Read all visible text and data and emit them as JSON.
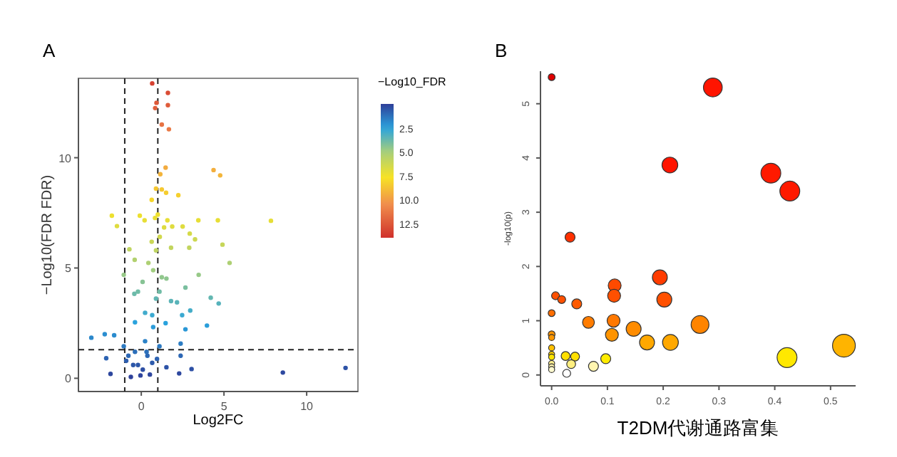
{
  "chart_data": [
    {
      "type": "scatter",
      "title": "A",
      "xlabel": "Log2FC",
      "ylabel": "−Log10(FDR FDR)",
      "clabel": "−Log10_FDR",
      "xlim": [
        -3.8,
        13.1
      ],
      "ylim": [
        -0.6,
        13.6
      ],
      "xticks": [
        0,
        5,
        10
      ],
      "yticks": [
        0,
        5,
        10
      ],
      "clim": [
        0,
        14
      ],
      "cticks": [
        {
          "value": 2.5,
          "label": "2.5"
        },
        {
          "value": 5,
          "label": "5.0"
        },
        {
          "value": 7.5,
          "label": "7.5"
        },
        {
          "value": 10,
          "label": "10.0"
        },
        {
          "value": 12.5,
          "label": "12.5"
        }
      ],
      "grid": false,
      "ref_lines": [
        {
          "axis": "x",
          "value": -1,
          "line_style": "dashed"
        },
        {
          "axis": "x",
          "value": 1,
          "line_style": "dashed"
        },
        {
          "axis": "y",
          "value": 1.3,
          "line_style": "dashed"
        }
      ],
      "x": [
        0.66,
        1.61,
        1.61,
        0.92,
        0.84,
        1.24,
        1.67,
        1.47,
        4.37,
        4.77,
        1.15,
        0.89,
        1.24,
        1.5,
        2.24,
        0.63,
        -1.78,
        -1.47,
        -0.09,
        0.2,
        0.83,
        1.0,
        1.58,
        1.87,
        1.38,
        2.5,
        3.45,
        4.63,
        7.84,
        2.93,
        3.25,
        4.91,
        -0.72,
        0.63,
        1.12,
        1.8,
        2.9,
        -0.4,
        0.89,
        5.34,
        3.47,
        0.43,
        0.72,
        1.24,
        -1.06,
        0.08,
        1.52,
        -0.2,
        -0.42,
        0.89,
        1.8,
        2.67,
        4.2,
        4.68,
        2.16,
        1.1,
        0.23,
        0.66,
        -0.38,
        2.47,
        2.96,
        3.97,
        2.67,
        1.47,
        0.72,
        -2.21,
        -3.02,
        -1.64,
        2.38,
        0.23,
        -1.06,
        1.1,
        -0.78,
        -2.12,
        2.38,
        3.04,
        2.29,
        8.56,
        12.35,
        -1.86,
        0.37,
        -0.2,
        0.09,
        -0.49,
        0.66,
        -0.05,
        -0.63,
        0.52,
        0.95,
        1.52,
        -0.91,
        0.32,
        -0.38
      ],
      "values": [
        13.37,
        12.94,
        12.38,
        12.49,
        12.25,
        11.5,
        11.29,
        9.55,
        9.44,
        9.2,
        9.25,
        8.6,
        8.56,
        8.41,
        8.3,
        8.09,
        7.37,
        6.9,
        7.37,
        7.16,
        7.27,
        7.42,
        7.16,
        6.88,
        6.84,
        6.88,
        7.16,
        7.16,
        7.14,
        6.56,
        6.3,
        6.06,
        5.85,
        6.19,
        6.41,
        5.92,
        5.92,
        5.37,
        5.8,
        5.23,
        4.69,
        5.23,
        4.9,
        4.58,
        4.69,
        4.37,
        4.52,
        3.93,
        3.83,
        3.61,
        3.5,
        4.11,
        3.65,
        3.39,
        3.44,
        3.93,
        2.97,
        2.86,
        2.54,
        2.86,
        3.07,
        2.39,
        2.22,
        2.5,
        2.32,
        2.0,
        1.84,
        1.95,
        1.57,
        1.68,
        1.45,
        1.45,
        1.02,
        0.91,
        1.02,
        0.42,
        0.22,
        0.26,
        0.47,
        0.2,
        1.02,
        0.6,
        0.39,
        0.6,
        0.7,
        0.13,
        0.06,
        0.17,
        0.88,
        0.5,
        0.79,
        1.2,
        1.2
      ],
      "cvalues": [
        13.37,
        12.94,
        12.38,
        12.49,
        12.25,
        11.5,
        11.29,
        9.55,
        9.44,
        9.2,
        9.25,
        8.6,
        8.56,
        8.41,
        8.3,
        8.09,
        7.37,
        6.9,
        7.37,
        7.16,
        7.27,
        7.42,
        7.16,
        6.88,
        6.84,
        6.88,
        7.16,
        7.16,
        7.14,
        6.56,
        6.3,
        6.06,
        5.85,
        6.19,
        6.41,
        5.92,
        5.92,
        5.37,
        5.8,
        5.23,
        4.69,
        5.23,
        4.9,
        4.58,
        4.69,
        4.37,
        4.52,
        3.93,
        3.83,
        3.61,
        3.5,
        4.11,
        3.65,
        3.39,
        3.44,
        3.93,
        2.97,
        2.86,
        2.54,
        2.86,
        3.07,
        2.39,
        2.22,
        2.5,
        2.32,
        2.0,
        1.84,
        1.95,
        1.57,
        1.68,
        1.45,
        1.45,
        1.02,
        0.91,
        1.02,
        0.42,
        0.22,
        0.26,
        0.47,
        0.2,
        1.02,
        0.6,
        0.39,
        0.6,
        0.7,
        0.13,
        0.06,
        0.17,
        0.88,
        0.5,
        0.79,
        1.2,
        1.2
      ]
    },
    {
      "type": "bubble",
      "title": "B",
      "xlabel": "T2DM代谢通路富集",
      "ylabel": "-log10(p)",
      "xlim": [
        -0.02,
        0.545
      ],
      "ylim": [
        -0.2,
        5.6
      ],
      "xticks": [
        {
          "value": 0,
          "label": "0.0"
        },
        0.1,
        0.2,
        0.3,
        0.4,
        0.5
      ],
      "yticks": [
        0,
        1,
        2,
        3,
        4,
        5
      ],
      "x": [
        0,
        0.289,
        0.212,
        0.393,
        0.427,
        0.033,
        0.194,
        0.113,
        0.112,
        0.202,
        0.007,
        0.018,
        0.045,
        0,
        0.111,
        0.066,
        0.266,
        0.147,
        0.108,
        0,
        0,
        0.171,
        0.213,
        0.524,
        0,
        0,
        0.025,
        0.042,
        0,
        0.422,
        0.097,
        0.035,
        0,
        0.075,
        0,
        0,
        0.027
      ],
      "values": [
        5.49,
        5.3,
        3.87,
        3.72,
        3.39,
        2.54,
        1.8,
        1.65,
        1.46,
        1.39,
        1.46,
        1.39,
        1.31,
        1.14,
        1.0,
        0.97,
        0.93,
        0.85,
        0.74,
        0.75,
        0.69,
        0.6,
        0.6,
        0.54,
        0.5,
        0.38,
        0.35,
        0.34,
        0.33,
        0.32,
        0.3,
        0.2,
        0.21,
        0.16,
        0.15,
        0.1,
        0.03
      ],
      "sizes": [
        0.09,
        0.68,
        0.48,
        0.76,
        0.76,
        0.19,
        0.43,
        0.32,
        0.32,
        0.43,
        0.12,
        0.12,
        0.19,
        0.09,
        0.32,
        0.27,
        0.61,
        0.43,
        0.32,
        0.09,
        0.07,
        0.43,
        0.48,
        1,
        0.07,
        0.07,
        0.15,
        0.15,
        0.07,
        0.76,
        0.19,
        0.15,
        0.07,
        0.19,
        0.07,
        0.07,
        0.12
      ],
      "colors": [
        "#e00000",
        "#ff1400",
        "#ff1400",
        "#ff1a00",
        "#ff1a00",
        "#ff3000",
        "#ff3c00",
        "#ff4a00",
        "#ff5000",
        "#ff5000",
        "#ff5000",
        "#ff5000",
        "#ff5a00",
        "#ff6e00",
        "#ff7800",
        "#ff7c00",
        "#ff8400",
        "#ff8c00",
        "#ff9400",
        "#ff9400",
        "#ff9800",
        "#ffa800",
        "#ffa800",
        "#ffb400",
        "#ffc000",
        "#ffd400",
        "#ffe000",
        "#ffe000",
        "#ffe400",
        "#ffe800",
        "#ffec00",
        "#ffef80",
        "#ffef90",
        "#fff5b0",
        "#fff5b0",
        "#fffad0",
        "#ffffff"
      ]
    }
  ]
}
